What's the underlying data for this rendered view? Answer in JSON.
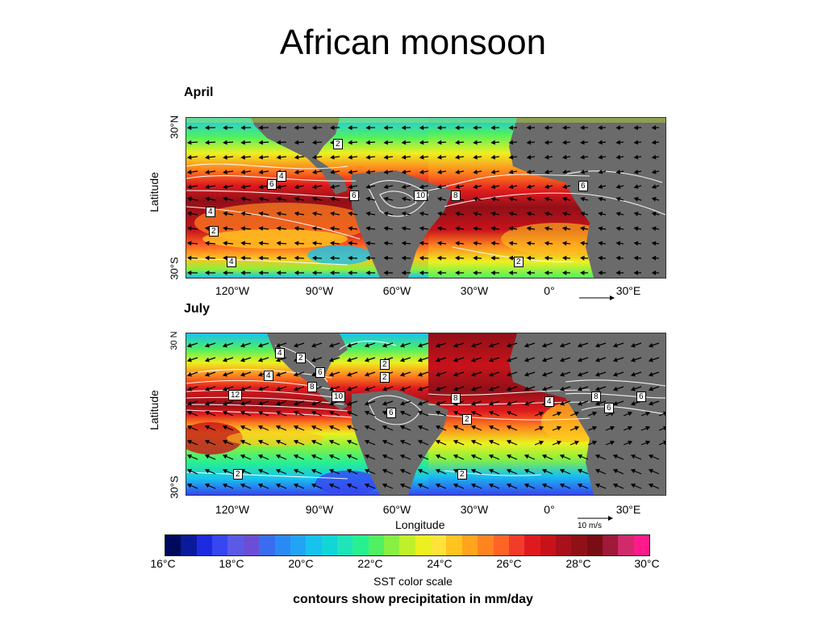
{
  "slide": {
    "title": "African monsoon"
  },
  "panels": [
    {
      "title": "April",
      "lat_ticks": [
        "30°N",
        "30°S"
      ],
      "ylabel": "Latitude",
      "lon_ticks": [
        "120°W",
        "90°W",
        "60°W",
        "30°W",
        "0°",
        "30°E"
      ],
      "contour_labels": [
        "2",
        "4",
        "6",
        "4",
        "2",
        "4",
        "6",
        "10",
        "8",
        "6",
        "2"
      ],
      "scale_label": ""
    },
    {
      "title": "July",
      "lat_ticks": [
        "30 N",
        "30°S"
      ],
      "ylabel": "Latitude",
      "lon_ticks": [
        "120°W",
        "90°W",
        "60°W",
        "30°W",
        "0°",
        "30°E"
      ],
      "xlabel": "Longitude",
      "contour_labels": [
        "4",
        "2",
        "2",
        "2",
        "4",
        "6",
        "12",
        "8",
        "10",
        "6",
        "8",
        "2",
        "4",
        "8",
        "6",
        "6",
        "2",
        "2"
      ],
      "scale_label": "10 m/s"
    }
  ],
  "colorbar": {
    "colors": [
      "#000a5a",
      "#0a1a9a",
      "#1c2be0",
      "#3646f0",
      "#5a5ae6",
      "#6a4fd6",
      "#3a6cf0",
      "#2a8af4",
      "#22a4f4",
      "#18c2ee",
      "#10d6d6",
      "#1ee4b8",
      "#28f090",
      "#50f060",
      "#88f040",
      "#c0f02a",
      "#ecf020",
      "#ffe23a",
      "#ffc420",
      "#ffa41c",
      "#ff8420",
      "#ff6424",
      "#f23c2a",
      "#de1a1e",
      "#c8121a",
      "#a8101a",
      "#901018",
      "#7a0c14",
      "#a0183a",
      "#d02a6a",
      "#ff1a8a"
    ],
    "tick_labels": [
      "16°C",
      "18°C",
      "20°C",
      "22°C",
      "24°C",
      "26°C",
      "28°C",
      "30°C"
    ],
    "label": "SST color scale"
  },
  "footnote": "contours show precipitation in mm/day"
}
